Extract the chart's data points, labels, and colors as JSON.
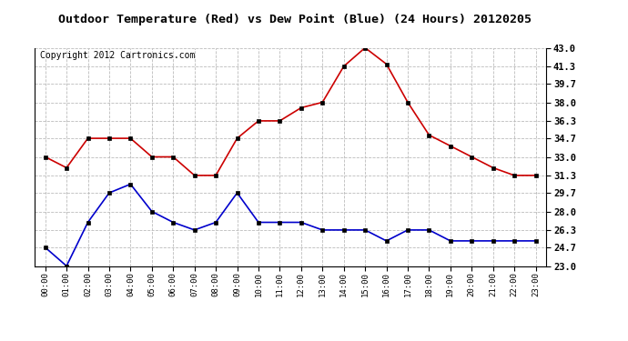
{
  "title": "Outdoor Temperature (Red) vs Dew Point (Blue) (24 Hours) 20120205",
  "copyright_text": "Copyright 2012 Cartronics.com",
  "x_labels": [
    "00:00",
    "01:00",
    "02:00",
    "03:00",
    "04:00",
    "05:00",
    "06:00",
    "07:00",
    "08:00",
    "09:00",
    "10:00",
    "11:00",
    "12:00",
    "13:00",
    "14:00",
    "15:00",
    "16:00",
    "17:00",
    "18:00",
    "19:00",
    "20:00",
    "21:00",
    "22:00",
    "23:00"
  ],
  "temp_red": [
    33.0,
    32.0,
    34.7,
    34.7,
    34.7,
    33.0,
    33.0,
    31.3,
    31.3,
    34.7,
    36.3,
    36.3,
    37.5,
    38.0,
    41.3,
    43.0,
    41.5,
    38.0,
    35.0,
    34.0,
    33.0,
    32.0,
    31.3,
    31.3
  ],
  "dew_blue": [
    24.7,
    23.0,
    27.0,
    29.7,
    30.5,
    28.0,
    27.0,
    26.3,
    27.0,
    29.7,
    27.0,
    27.0,
    27.0,
    26.3,
    26.3,
    26.3,
    25.3,
    26.3,
    26.3,
    25.3,
    25.3,
    25.3,
    25.3,
    25.3
  ],
  "y_ticks": [
    23.0,
    24.7,
    26.3,
    28.0,
    29.7,
    31.3,
    33.0,
    34.7,
    36.3,
    38.0,
    39.7,
    41.3,
    43.0
  ],
  "y_min": 23.0,
  "y_max": 43.0,
  "red_color": "#cc0000",
  "blue_color": "#0000cc",
  "bg_color": "#ffffff",
  "grid_color": "#bbbbbb",
  "title_fontsize": 9.5,
  "copyright_fontsize": 7
}
